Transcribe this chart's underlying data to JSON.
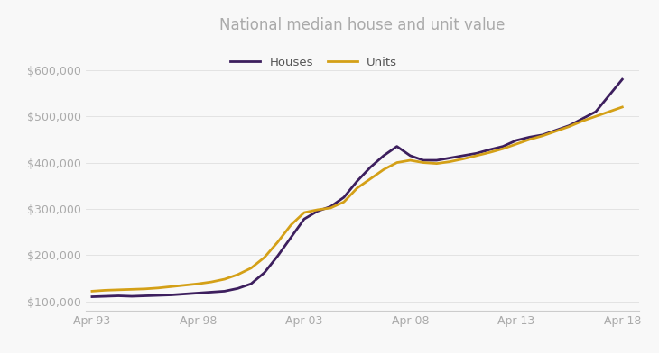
{
  "title": "National median house and unit value",
  "title_color": "#aaaaaa",
  "background_color": "#f8f8f8",
  "houses_color": "#3d1f5e",
  "units_color": "#d4a017",
  "line_width": 2.0,
  "x_ticks": [
    "Apr 93",
    "Apr 98",
    "Apr 03",
    "Apr 08",
    "Apr 13",
    "Apr 18"
  ],
  "ylim": [
    80000,
    660000
  ],
  "yticks": [
    100000,
    200000,
    300000,
    400000,
    500000,
    600000
  ],
  "ytick_labels": [
    "$100,000",
    "$200,000",
    "$300,000",
    "$400,000",
    "$500,000",
    "$600,000"
  ],
  "houses": [
    110000,
    111000,
    112000,
    111000,
    112000,
    113000,
    114000,
    116000,
    118000,
    120000,
    122000,
    128000,
    138000,
    162000,
    198000,
    238000,
    278000,
    295000,
    305000,
    325000,
    360000,
    390000,
    415000,
    435000,
    415000,
    405000,
    405000,
    410000,
    415000,
    420000,
    428000,
    435000,
    448000,
    455000,
    460000,
    470000,
    480000,
    495000,
    510000,
    545000,
    580000
  ],
  "units": [
    122000,
    124000,
    125000,
    126000,
    127000,
    129000,
    132000,
    135000,
    138000,
    142000,
    148000,
    158000,
    172000,
    195000,
    228000,
    265000,
    292000,
    298000,
    302000,
    315000,
    345000,
    365000,
    385000,
    400000,
    405000,
    400000,
    398000,
    402000,
    408000,
    415000,
    422000,
    430000,
    440000,
    450000,
    458000,
    468000,
    478000,
    490000,
    500000,
    510000,
    520000
  ],
  "legend_houses_label": "Houses",
  "legend_units_label": "Units"
}
